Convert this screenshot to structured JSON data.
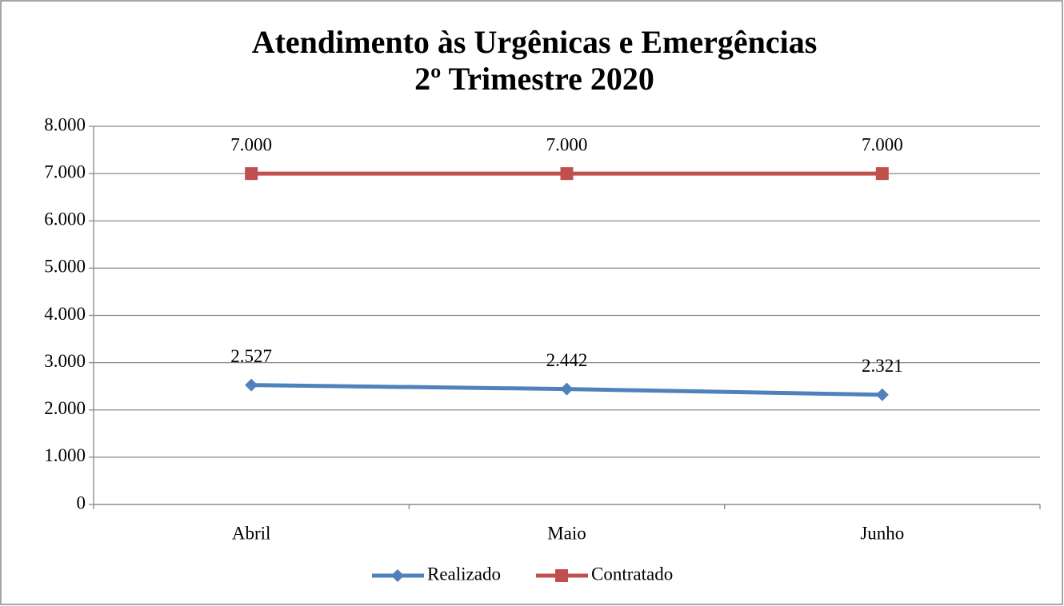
{
  "chart_data": {
    "type": "line",
    "title": "Atendimento às Urgênicas e Emergências",
    "subtitle": "2º Trimestre 2020",
    "categories": [
      "Abril",
      "Maio",
      "Junho"
    ],
    "series": [
      {
        "name": "Realizado",
        "color": "#4f81bd",
        "values": [
          2527,
          2442,
          2321
        ],
        "value_labels": [
          "2.527",
          "2.442",
          "2.321"
        ]
      },
      {
        "name": "Contratado",
        "color": "#c0504d",
        "values": [
          7000,
          7000,
          7000
        ],
        "value_labels": [
          "7.000",
          "7.000",
          "7.000"
        ]
      }
    ],
    "ylim": [
      0,
      8000
    ],
    "yticks": [
      0,
      {
        "value": 1000,
        "label": "1.000"
      },
      {
        "value": 2000,
        "label": "2.000"
      },
      {
        "value": 3000,
        "label": "3.000"
      },
      {
        "value": 4000,
        "label": "4.000"
      },
      {
        "value": 5000,
        "label": "5.000"
      },
      {
        "value": 6000,
        "label": "6.000"
      },
      {
        "value": 7000,
        "label": "7.000"
      },
      {
        "value": 8000,
        "label": "8.000"
      }
    ],
    "grid": true,
    "legend": "bottom"
  }
}
